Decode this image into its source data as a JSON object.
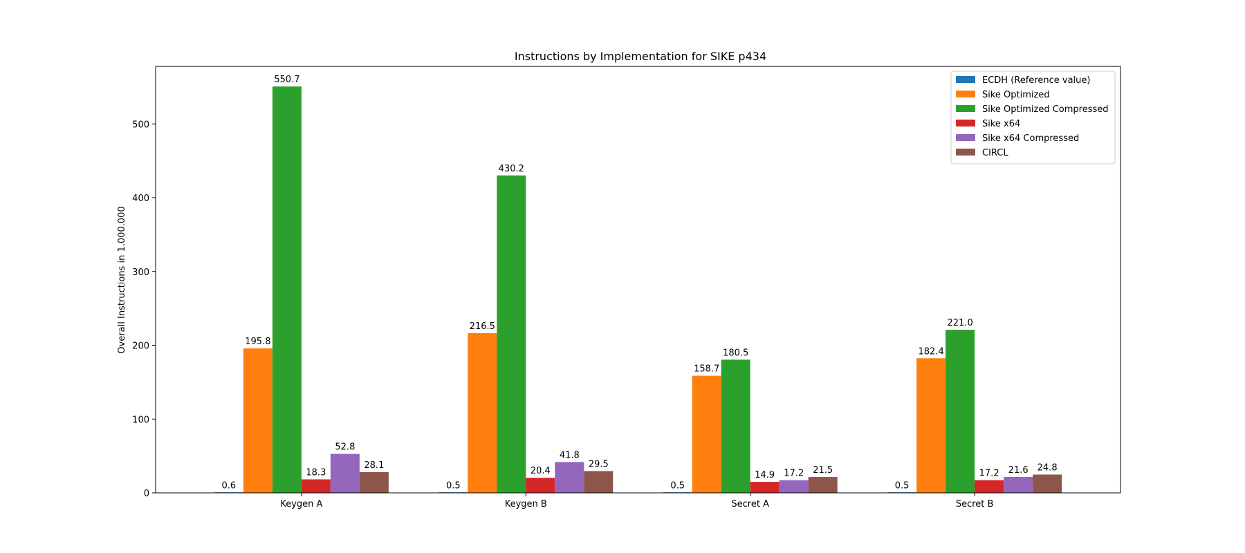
{
  "chart_data": {
    "type": "bar",
    "title": "Instructions by Implementation for SIKE p434",
    "xlabel": "",
    "ylabel": "Overall Instructions in 1.000.000",
    "categories": [
      "Keygen A",
      "Keygen B",
      "Secret A",
      "Secret B"
    ],
    "ylim": [
      0,
      578
    ],
    "yticks": [
      0,
      100,
      200,
      300,
      400,
      500
    ],
    "grid": false,
    "legend_position": "top-right",
    "series": [
      {
        "name": "ECDH (Reference value)",
        "color": "#1f77b4",
        "values": [
          0.6,
          0.5,
          0.5,
          0.5
        ],
        "labels": [
          "0.6",
          "0.5",
          "0.5",
          "0.5"
        ]
      },
      {
        "name": "Sike Optimized",
        "color": "#ff7f0e",
        "values": [
          195.8,
          216.5,
          158.7,
          182.4
        ],
        "labels": [
          "195.8",
          "216.5",
          "158.7",
          "182.4"
        ]
      },
      {
        "name": "Sike Optimized Compressed",
        "color": "#2ca02c",
        "values": [
          550.7,
          430.2,
          180.5,
          221.0
        ],
        "labels": [
          "550.7",
          "430.2",
          "180.5",
          "221.0"
        ]
      },
      {
        "name": "Sike x64",
        "color": "#d62728",
        "values": [
          18.3,
          20.4,
          14.9,
          17.2
        ],
        "labels": [
          "18.3",
          "20.4",
          "14.9",
          "17.2"
        ]
      },
      {
        "name": "Sike x64 Compressed",
        "color": "#9467bd",
        "values": [
          52.8,
          41.8,
          17.2,
          21.6
        ],
        "labels": [
          "52.8",
          "41.8",
          "17.2",
          "21.6"
        ]
      },
      {
        "name": "CIRCL",
        "color": "#8c564b",
        "values": [
          28.1,
          29.5,
          21.5,
          24.8
        ],
        "labels": [
          "28.1",
          "29.5",
          "21.5",
          "24.8"
        ]
      }
    ]
  }
}
